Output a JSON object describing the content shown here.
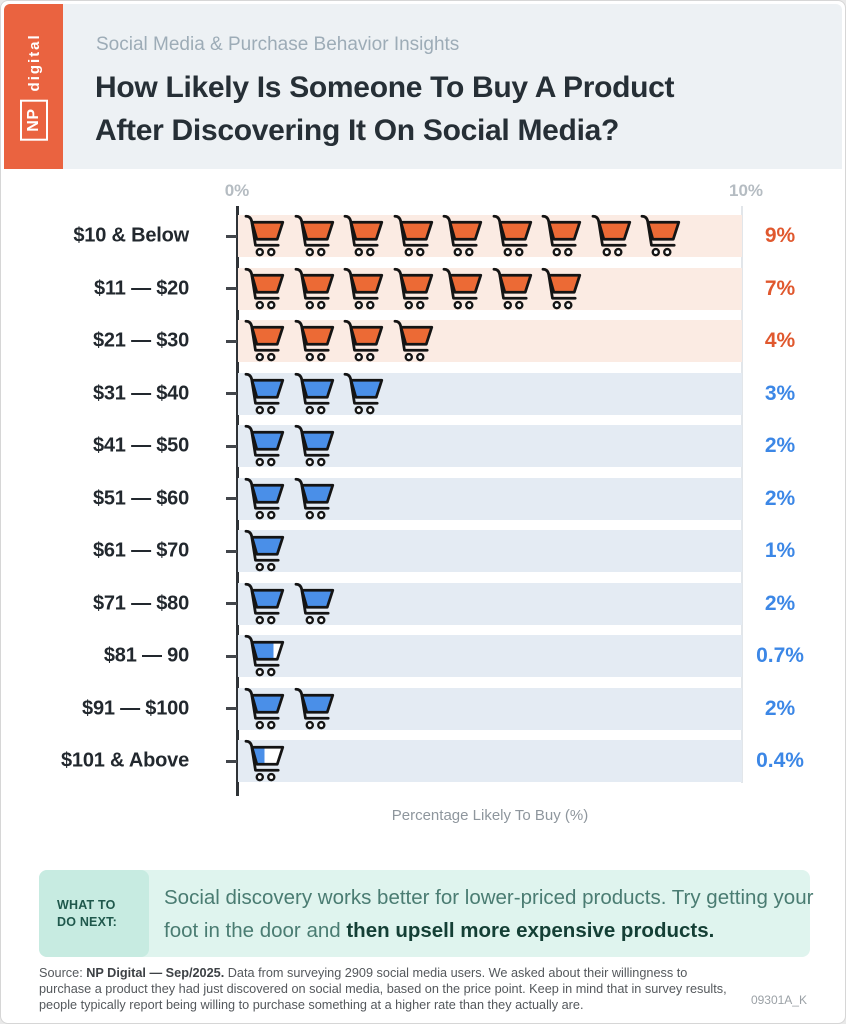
{
  "header": {
    "brand": {
      "np": "NP",
      "digital": "digital"
    },
    "kicker": "Social Media & Purchase Behavior Insights",
    "title_line1": "How Likely Is Someone To Buy A Product",
    "title_line2": "After Discovering It On Social Media?"
  },
  "chart_data": {
    "type": "bar",
    "subtype": "pictogram-shopping-carts",
    "categories": [
      "$10 & Below",
      "$11 — $20",
      "$21 — $30",
      "$31 — $40",
      "$41 — $50",
      "$51 — $60",
      "$61 — $70",
      "$71 — $80",
      "$81 — 90",
      "$91 — $100",
      "$101 & Above"
    ],
    "values": [
      9,
      7,
      4,
      3,
      2,
      2,
      1,
      2,
      0.7,
      2,
      0.4
    ],
    "value_labels": [
      "9%",
      "7%",
      "4%",
      "3%",
      "2%",
      "2%",
      "1%",
      "2%",
      "0.7%",
      "2%",
      "0.4%"
    ],
    "row_colors": [
      "orange",
      "orange",
      "orange",
      "blue",
      "blue",
      "blue",
      "blue",
      "blue",
      "blue",
      "blue",
      "blue"
    ],
    "icon_unit_value": 1,
    "axis": {
      "min_label": "0%",
      "max_label": "10%",
      "xlim": [
        0,
        10
      ],
      "xlabel": "Percentage Likely To Buy (%)",
      "grid": "right-edge-only"
    },
    "legend": "none",
    "colors": {
      "orange_fill": "#EC6A35",
      "blue_fill": "#4A8FE8",
      "orange_band": "#FBEBE3",
      "blue_band": "#E4EBF3",
      "orange_text": "#E0582E",
      "blue_text": "#3C87E6",
      "icon_stroke": "#141414"
    }
  },
  "callout": {
    "label_line1": "WHAT TO",
    "label_line2": "DO NEXT:",
    "text_regular": "Social discovery works better for lower-priced products. Try getting your foot in the door and ",
    "text_bold": "then upsell more expensive products."
  },
  "footer": {
    "source_prefix": "Source: ",
    "source_bold": "NP Digital — Sep/2025.",
    "source_rest": " Data from surveying 2909 social media users. We asked about their willingness to purchase a product they had just discovered on social media, based on the price point. Keep in mind that in survey results, people typically report being willing to purchase something at a higher rate than they actually are.",
    "code": "09301A_K"
  }
}
